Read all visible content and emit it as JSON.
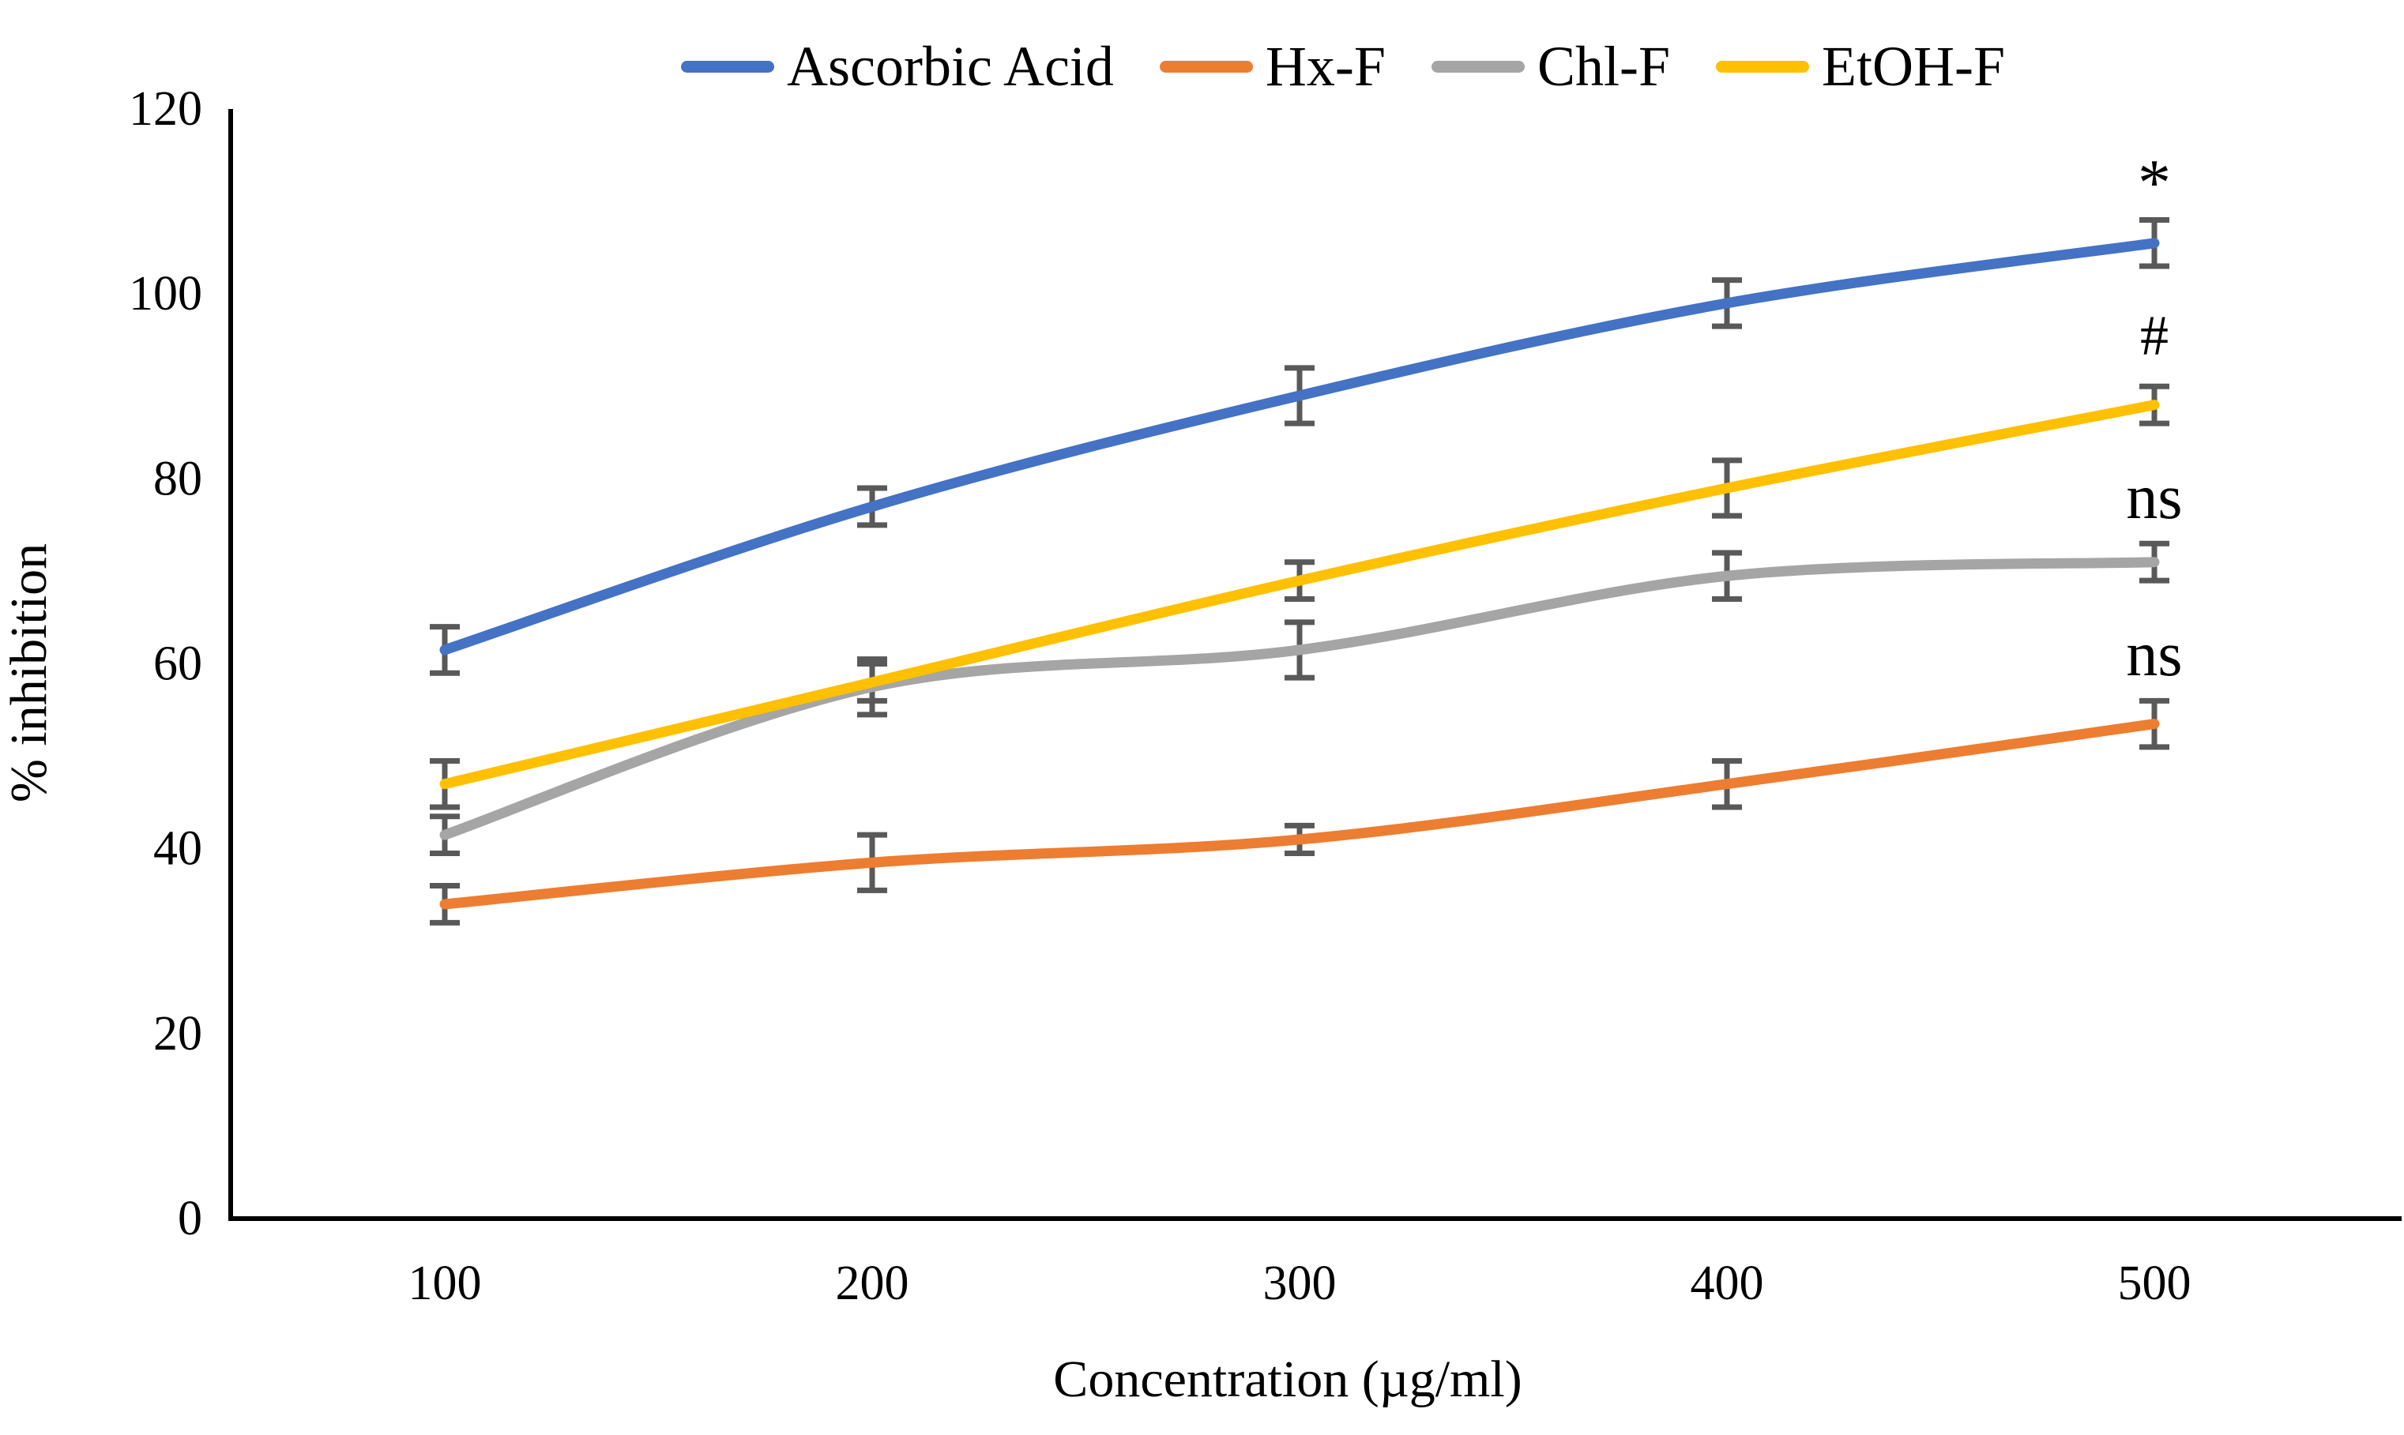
{
  "chart_data": {
    "type": "line",
    "x": [
      100,
      200,
      300,
      400,
      500
    ],
    "xlabel": "Concentration (µg/ml)",
    "ylabel": "% inhibition",
    "ylim": [
      0,
      120
    ],
    "ytick_step": 20,
    "grid": false,
    "legend_position": "top",
    "smoothed_lines": true,
    "error_bar_color": "#595959",
    "series": [
      {
        "name": "Ascorbic Acid",
        "color": "#4472C4",
        "values": [
          61.5,
          77,
          89,
          99,
          105.5
        ],
        "errors": [
          2.5,
          2,
          3,
          2.5,
          2.5
        ]
      },
      {
        "name": "Hx-F",
        "color": "#ED7D31",
        "values": [
          34,
          38.5,
          41,
          47,
          53.5
        ],
        "errors": [
          2,
          3,
          1.5,
          2.5,
          2.5
        ]
      },
      {
        "name": "Chl-F",
        "color": "#A5A5A5",
        "values": [
          41.5,
          57.5,
          61.5,
          69.5,
          71
        ],
        "errors": [
          2,
          3,
          3,
          2.5,
          2
        ]
      },
      {
        "name": "EtOH-F",
        "color": "#FFC000",
        "values": [
          47,
          58,
          69,
          79,
          88
        ],
        "errors": [
          2.5,
          2,
          2,
          3,
          2
        ]
      }
    ],
    "annotations": [
      {
        "text": "*",
        "x": 500,
        "y": 112,
        "refers_to": "Ascorbic Acid",
        "font_size": 84
      },
      {
        "text": "#",
        "x": 500,
        "y": 95.5,
        "refers_to": "EtOH-F",
        "font_size": 72
      },
      {
        "text": "ns",
        "x": 500,
        "y": 78,
        "refers_to": "Chl-F",
        "font_size": 80
      },
      {
        "text": "ns",
        "x": 500,
        "y": 61,
        "refers_to": "Hx-F",
        "font_size": 80
      }
    ]
  }
}
